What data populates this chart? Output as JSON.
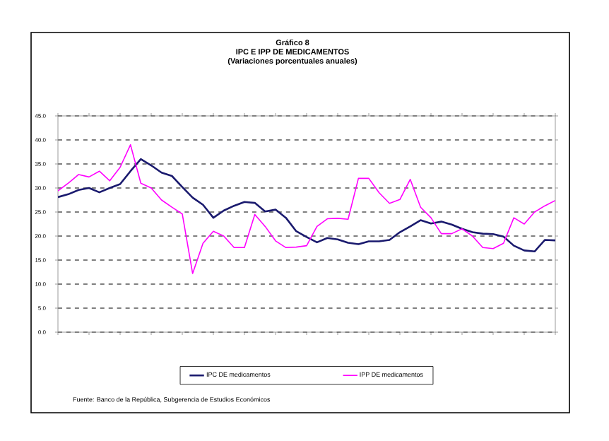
{
  "chart_data": {
    "type": "line",
    "title": "IPC  E IPP DE MEDICAMENTOS",
    "subtitle": "(Variaciones porcentuales anuales)",
    "annotations": [
      "Gráfico 8",
      "Fuente: Banco de la República, Subgerencia de Estudios Económicos"
    ],
    "categories": [
      null,
      null,
      null,
      null,
      null,
      null,
      null,
      null,
      null,
      null,
      null,
      null,
      null,
      null,
      null,
      null,
      null,
      null,
      null,
      null,
      null,
      null,
      null,
      null,
      null,
      null,
      null,
      null,
      null,
      null,
      null,
      null,
      null,
      null,
      null,
      null,
      null,
      null,
      null,
      null,
      null,
      null,
      null,
      null,
      null,
      null,
      null,
      null,
      null
    ],
    "series": [
      {
        "name": "IPC DE medicamentos",
        "color": "#1a1a6e",
        "values": [
          28.1,
          28.7,
          29.6,
          30.0,
          29.1,
          30.0,
          30.8,
          33.5,
          36.0,
          34.7,
          33.2,
          32.5,
          30.2,
          28.0,
          26.5,
          23.8,
          25.3,
          26.3,
          27.1,
          26.9,
          25.1,
          25.5,
          23.8,
          21.0,
          19.8,
          18.7,
          19.6,
          19.3,
          18.6,
          18.3,
          18.9,
          18.9,
          19.2,
          20.8,
          22.0,
          23.3,
          22.6,
          23.0,
          22.4,
          21.5,
          20.8,
          20.5,
          20.4,
          19.9,
          18.0,
          17.0,
          16.8,
          19.2,
          19.1
        ]
      },
      {
        "name": "IPP DE medicamentos",
        "color": "#ff00ff",
        "values": [
          29.4,
          31.0,
          32.8,
          32.3,
          33.5,
          31.5,
          34.3,
          39.0,
          31.0,
          30.0,
          27.5,
          26.0,
          24.6,
          12.2,
          18.5,
          21.0,
          20.0,
          17.6,
          17.6,
          24.5,
          22.0,
          19.0,
          17.6,
          17.7,
          18.0,
          22.0,
          23.6,
          23.7,
          23.5,
          32.0,
          32.0,
          29.0,
          26.8,
          27.6,
          31.8,
          26.0,
          23.8,
          20.5,
          20.5,
          21.5,
          20.0,
          17.6,
          17.4,
          18.5,
          23.8,
          22.5,
          25.0,
          26.3,
          27.4
        ]
      }
    ],
    "ylim": [
      0,
      45
    ],
    "yticks": [
      {
        "value": 0,
        "label": "0.0"
      },
      {
        "value": 5,
        "label": "5.0"
      },
      {
        "value": 10,
        "label": "10.0"
      },
      {
        "value": 15,
        "label": "15.0"
      },
      {
        "value": 20,
        "label": "20.0"
      },
      {
        "value": 25,
        "label": "25.0"
      },
      {
        "value": 30,
        "label": "30.0"
      },
      {
        "value": 35,
        "label": "35.0"
      },
      {
        "value": 40,
        "label": "40.0"
      },
      {
        "value": 45,
        "label": "45.0"
      }
    ],
    "grid": "y",
    "legend": "bottom",
    "tick_labels": "y",
    "marker": "none",
    "line_style": "solid"
  }
}
